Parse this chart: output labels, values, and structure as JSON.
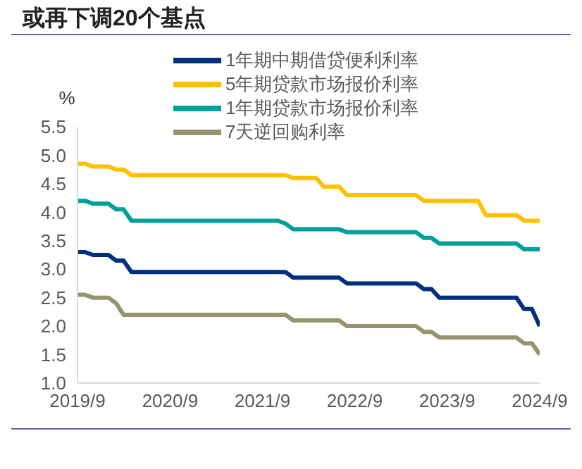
{
  "chart_data": {
    "type": "line",
    "title": "或再下调20个基点",
    "ylabel": "%",
    "xlim": [
      "2019-09",
      "2024-09"
    ],
    "xticks": [
      {
        "value": "2019-09",
        "label": "2019/9"
      },
      {
        "value": "2020-09",
        "label": "2020/9"
      },
      {
        "value": "2021-09",
        "label": "2021/9"
      },
      {
        "value": "2022-09",
        "label": "2022/9"
      },
      {
        "value": "2023-09",
        "label": "2023/9"
      },
      {
        "value": "2024-09",
        "label": "2024/9"
      }
    ],
    "ylim": [
      1.0,
      5.5
    ],
    "yticks": [
      {
        "value": 1,
        "label": "1.0"
      },
      {
        "value": 1.5,
        "label": "1.5"
      },
      {
        "value": 2,
        "label": "2.0"
      },
      {
        "value": 2.5,
        "label": "2.5"
      },
      {
        "value": 3,
        "label": "3.0"
      },
      {
        "value": 3.5,
        "label": "3.5"
      },
      {
        "value": 4,
        "label": "4.0"
      },
      {
        "value": 4.5,
        "label": "4.5"
      },
      {
        "value": 5,
        "label": "5.0"
      },
      {
        "value": 5.5,
        "label": "5.5"
      }
    ],
    "grid": false,
    "legend": "top",
    "marker": "none",
    "line_style": "solid",
    "series": [
      {
        "name": "1年期中期借贷便利利率",
        "color": "#002f7e",
        "x": [
          "2019-09",
          "2019-10",
          "2019-11",
          "2020-01",
          "2020-02",
          "2020-03",
          "2020-04",
          "2021-12",
          "2022-01",
          "2022-07",
          "2022-08",
          "2023-05",
          "2023-06",
          "2023-07",
          "2023-08",
          "2024-06",
          "2024-07",
          "2024-08",
          "2024-09"
        ],
        "values": [
          3.3,
          3.3,
          3.25,
          3.25,
          3.15,
          3.15,
          2.95,
          2.95,
          2.85,
          2.85,
          2.75,
          2.75,
          2.65,
          2.65,
          2.5,
          2.5,
          2.3,
          2.3,
          2.0
        ]
      },
      {
        "name": "5年期贷款市场报价利率",
        "color": "#ffc000",
        "x": [
          "2019-09",
          "2019-10",
          "2019-11",
          "2020-01",
          "2020-02",
          "2020-03",
          "2020-04",
          "2021-12",
          "2022-01",
          "2022-04",
          "2022-05",
          "2022-07",
          "2022-08",
          "2023-05",
          "2023-06",
          "2024-01",
          "2024-02",
          "2024-06",
          "2024-07",
          "2024-09"
        ],
        "values": [
          4.85,
          4.85,
          4.8,
          4.8,
          4.75,
          4.75,
          4.65,
          4.65,
          4.6,
          4.6,
          4.45,
          4.45,
          4.3,
          4.3,
          4.2,
          4.2,
          3.95,
          3.95,
          3.85,
          3.85
        ]
      },
      {
        "name": "1年期贷款市场报价利率",
        "color": "#00a09a",
        "x": [
          "2019-09",
          "2019-10",
          "2019-11",
          "2020-01",
          "2020-02",
          "2020-03",
          "2020-04",
          "2021-11",
          "2021-12",
          "2022-01",
          "2022-07",
          "2022-08",
          "2023-05",
          "2023-06",
          "2023-07",
          "2023-08",
          "2024-06",
          "2024-07",
          "2024-09"
        ],
        "values": [
          4.2,
          4.2,
          4.15,
          4.15,
          4.05,
          4.05,
          3.85,
          3.85,
          3.8,
          3.7,
          3.7,
          3.65,
          3.65,
          3.55,
          3.55,
          3.45,
          3.45,
          3.35,
          3.35
        ]
      },
      {
        "name": "7天逆回购利率",
        "color": "#96946e",
        "x": [
          "2019-09",
          "2019-10",
          "2019-11",
          "2020-01",
          "2020-02",
          "2020-03",
          "2021-12",
          "2022-01",
          "2022-07",
          "2022-08",
          "2023-05",
          "2023-06",
          "2023-07",
          "2023-08",
          "2024-06",
          "2024-07",
          "2024-08",
          "2024-09"
        ],
        "values": [
          2.55,
          2.55,
          2.5,
          2.5,
          2.4,
          2.2,
          2.2,
          2.1,
          2.1,
          2.0,
          2.0,
          1.9,
          1.9,
          1.8,
          1.8,
          1.7,
          1.7,
          1.5
        ]
      }
    ]
  }
}
